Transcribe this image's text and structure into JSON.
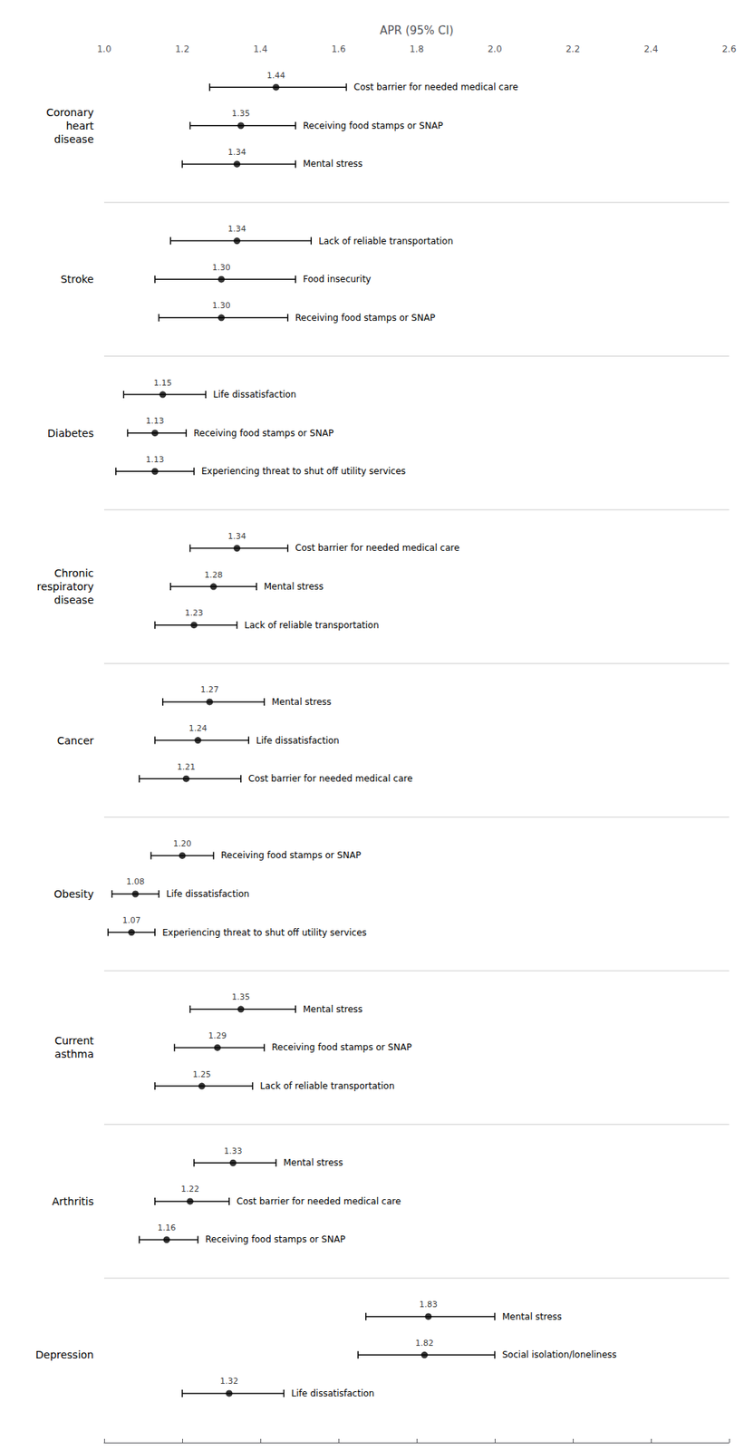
{
  "chart_data": {
    "type": "forest",
    "xlabel": "APR (95% CI)",
    "xlim": [
      1.0,
      2.6
    ],
    "xticks": [
      {
        "value": 1.0,
        "label": "1.0"
      },
      1.2,
      1.4,
      1.6,
      1.8,
      {
        "value": 2.0,
        "label": "2.0"
      },
      2.2,
      2.4,
      2.6
    ],
    "grid": false,
    "data_labels": true,
    "color": "#000000",
    "groups": [
      {
        "name": "Coronary\nheart\ndisease",
        "categories": [
          "Cost barrier for needed medical care",
          "Receiving food stamps or SNAP",
          "Mental stress"
        ],
        "values": [
          1.44,
          1.35,
          1.34
        ],
        "value_labels": [
          "1.44",
          "1.35",
          "1.34"
        ],
        "ci_lo": [
          1.27,
          1.22,
          1.2
        ],
        "ci_hi": [
          1.62,
          1.49,
          1.49
        ]
      },
      {
        "name": "Stroke",
        "categories": [
          "Lack of reliable transportation",
          "Food insecurity",
          "Receiving food stamps or SNAP"
        ],
        "values": [
          1.34,
          1.3,
          1.3
        ],
        "value_labels": [
          "1.34",
          "1.30",
          "1.30"
        ],
        "ci_lo": [
          1.17,
          1.13,
          1.14
        ],
        "ci_hi": [
          1.53,
          1.49,
          1.47
        ]
      },
      {
        "name": "Diabetes",
        "categories": [
          "Life dissatisfaction",
          "Receiving food stamps or SNAP",
          "Experiencing threat to shut off utility services"
        ],
        "values": [
          1.15,
          1.13,
          1.13
        ],
        "value_labels": [
          "1.15",
          "1.13",
          "1.13"
        ],
        "ci_lo": [
          1.05,
          1.06,
          1.03
        ],
        "ci_hi": [
          1.26,
          1.21,
          1.23
        ]
      },
      {
        "name": "Chronic\nrespiratory\ndisease",
        "categories": [
          "Cost barrier for needed medical care",
          "Mental stress",
          "Lack of reliable transportation"
        ],
        "values": [
          1.34,
          1.28,
          1.23
        ],
        "value_labels": [
          "1.34",
          "1.28",
          "1.23"
        ],
        "ci_lo": [
          1.22,
          1.17,
          1.13
        ],
        "ci_hi": [
          1.47,
          1.39,
          1.34
        ]
      },
      {
        "name": "Cancer",
        "categories": [
          "Mental stress",
          "Life dissatisfaction",
          "Cost barrier for needed medical care"
        ],
        "values": [
          1.27,
          1.24,
          1.21
        ],
        "value_labels": [
          "1.27",
          "1.24",
          "1.21"
        ],
        "ci_lo": [
          1.15,
          1.13,
          1.09
        ],
        "ci_hi": [
          1.41,
          1.37,
          1.35
        ]
      },
      {
        "name": "Obesity",
        "categories": [
          "Receiving food stamps or SNAP",
          "Life dissatisfaction",
          "Experiencing threat to shut off utility services"
        ],
        "values": [
          1.2,
          1.08,
          1.07
        ],
        "value_labels": [
          "1.20",
          "1.08",
          "1.07"
        ],
        "ci_lo": [
          1.12,
          1.02,
          1.01
        ],
        "ci_hi": [
          1.28,
          1.14,
          1.13
        ]
      },
      {
        "name": "Current\nasthma",
        "categories": [
          "Mental stress",
          "Receiving food stamps or SNAP",
          "Lack of reliable transportation"
        ],
        "values": [
          1.35,
          1.29,
          1.25
        ],
        "value_labels": [
          "1.35",
          "1.29",
          "1.25"
        ],
        "ci_lo": [
          1.22,
          1.18,
          1.13
        ],
        "ci_hi": [
          1.49,
          1.41,
          1.38
        ]
      },
      {
        "name": "Arthritis",
        "categories": [
          "Mental stress",
          "Cost barrier for needed medical care",
          "Receiving food stamps or SNAP"
        ],
        "values": [
          1.33,
          1.22,
          1.16
        ],
        "value_labels": [
          "1.33",
          "1.22",
          "1.16"
        ],
        "ci_lo": [
          1.23,
          1.13,
          1.09
        ],
        "ci_hi": [
          1.44,
          1.32,
          1.24
        ]
      },
      {
        "name": "Depression",
        "categories": [
          "Mental stress",
          "Social isolation/loneliness",
          "Life dissatisfaction"
        ],
        "values": [
          1.83,
          1.82,
          1.32
        ],
        "value_labels": [
          "1.83",
          "1.82",
          "1.32"
        ],
        "ci_lo": [
          1.67,
          1.65,
          1.2
        ],
        "ci_hi": [
          2.0,
          2.0,
          1.46
        ]
      }
    ]
  }
}
